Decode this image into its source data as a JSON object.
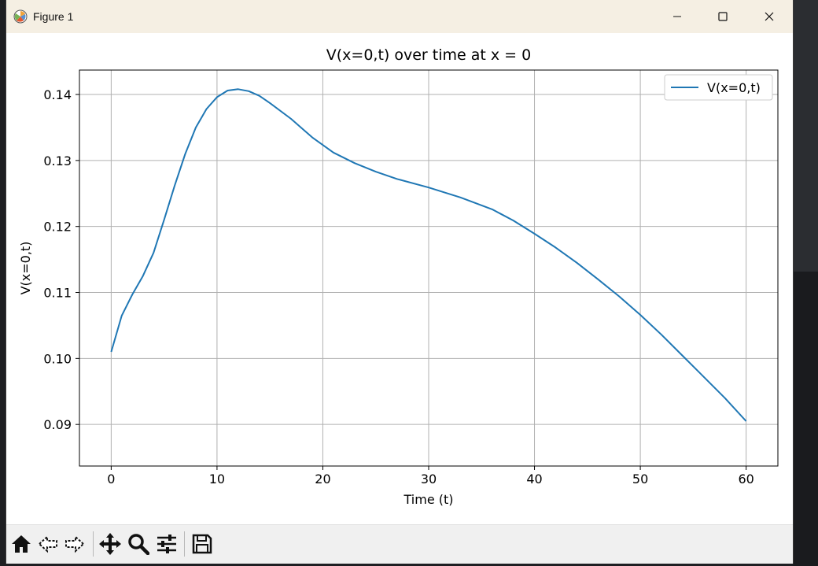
{
  "window": {
    "title": "Figure 1",
    "controls": {
      "minimize_icon": "minimize-icon",
      "maximize_icon": "maximize-icon",
      "close_icon": "close-icon"
    }
  },
  "toolbar": {
    "icons": [
      "home-icon",
      "back-icon",
      "forward-icon",
      "pan-icon",
      "zoom-icon",
      "configure-subplots-icon",
      "save-icon"
    ]
  },
  "chart_data": {
    "type": "line",
    "title": "V(x=0,t) over time at x = 0",
    "xlabel": "Time (t)",
    "ylabel": "V(x=0,t)",
    "xlim": [
      -3,
      63
    ],
    "ylim": [
      0.0837,
      0.1437
    ],
    "xticks": [
      0,
      10,
      20,
      30,
      40,
      50,
      60
    ],
    "yticks": [
      0.09,
      0.1,
      0.11,
      0.12,
      0.13,
      0.14
    ],
    "ytick_labels": [
      "0.09",
      "0.10",
      "0.11",
      "0.12",
      "0.13",
      "0.14"
    ],
    "grid": true,
    "legend": {
      "position": "upper right"
    },
    "line_color": "#1f77b4",
    "series": [
      {
        "name": "V(x=0,t)",
        "x": [
          0,
          1,
          2,
          3,
          4,
          5,
          6,
          7,
          8,
          9,
          10,
          11,
          12,
          13,
          14,
          15,
          17,
          19,
          21,
          23,
          25,
          27,
          30,
          33,
          36,
          38,
          40,
          42,
          44,
          46,
          48,
          50,
          52,
          54,
          56,
          58,
          60
        ],
        "y": [
          0.101,
          0.1065,
          0.1097,
          0.1125,
          0.116,
          0.121,
          0.1262,
          0.131,
          0.135,
          0.1378,
          0.1396,
          0.1406,
          0.1408,
          0.1405,
          0.1398,
          0.1387,
          0.1363,
          0.1335,
          0.1312,
          0.1296,
          0.1283,
          0.1272,
          0.1259,
          0.1244,
          0.1226,
          0.1209,
          0.1189,
          0.1168,
          0.1145,
          0.112,
          0.1094,
          0.1066,
          0.1036,
          0.1004,
          0.0972,
          0.094,
          0.0905
        ]
      }
    ]
  }
}
